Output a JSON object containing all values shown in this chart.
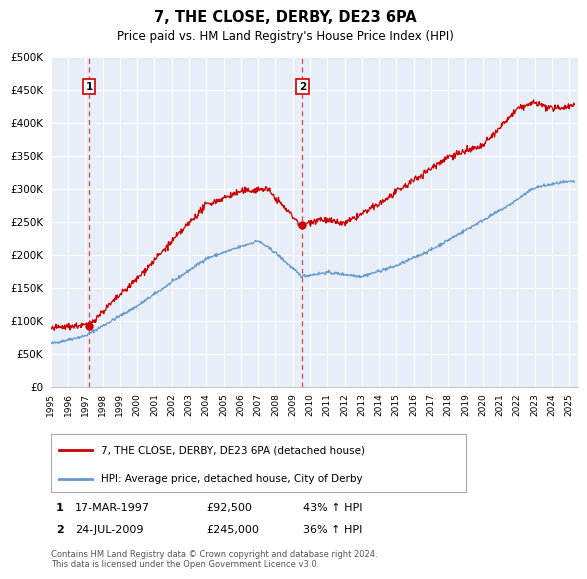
{
  "title": "7, THE CLOSE, DERBY, DE23 6PA",
  "subtitle": "Price paid vs. HM Land Registry's House Price Index (HPI)",
  "red_label": "7, THE CLOSE, DERBY, DE23 6PA (detached house)",
  "blue_label": "HPI: Average price, detached house, City of Derby",
  "annotation1_date": "17-MAR-1997",
  "annotation1_price": "£92,500",
  "annotation1_hpi": "43% ↑ HPI",
  "annotation2_date": "24-JUL-2009",
  "annotation2_price": "£245,000",
  "annotation2_hpi": "36% ↑ HPI",
  "footer": "Contains HM Land Registry data © Crown copyright and database right 2024.\nThis data is licensed under the Open Government Licence v3.0.",
  "xmin": 1995.0,
  "xmax": 2025.5,
  "ymin": 0,
  "ymax": 500000,
  "yticks": [
    0,
    50000,
    100000,
    150000,
    200000,
    250000,
    300000,
    350000,
    400000,
    450000,
    500000
  ],
  "ytick_labels": [
    "£0",
    "£50K",
    "£100K",
    "£150K",
    "£200K",
    "£250K",
    "£300K",
    "£350K",
    "£400K",
    "£450K",
    "£500K"
  ],
  "xtick_years": [
    1995,
    1996,
    1997,
    1998,
    1999,
    2000,
    2001,
    2002,
    2003,
    2004,
    2005,
    2006,
    2007,
    2008,
    2009,
    2010,
    2011,
    2012,
    2013,
    2014,
    2015,
    2016,
    2017,
    2018,
    2019,
    2020,
    2021,
    2022,
    2023,
    2024,
    2025
  ],
  "vline1_x": 1997.21,
  "vline2_x": 2009.56,
  "dot1_x": 1997.21,
  "dot1_y": 92500,
  "dot2_x": 2009.56,
  "dot2_y": 245000,
  "bg_color": "#e8eef7",
  "grid_color": "#ffffff",
  "red_color": "#cc0000",
  "blue_color": "#6699cc",
  "vline_color": "#dd4444"
}
